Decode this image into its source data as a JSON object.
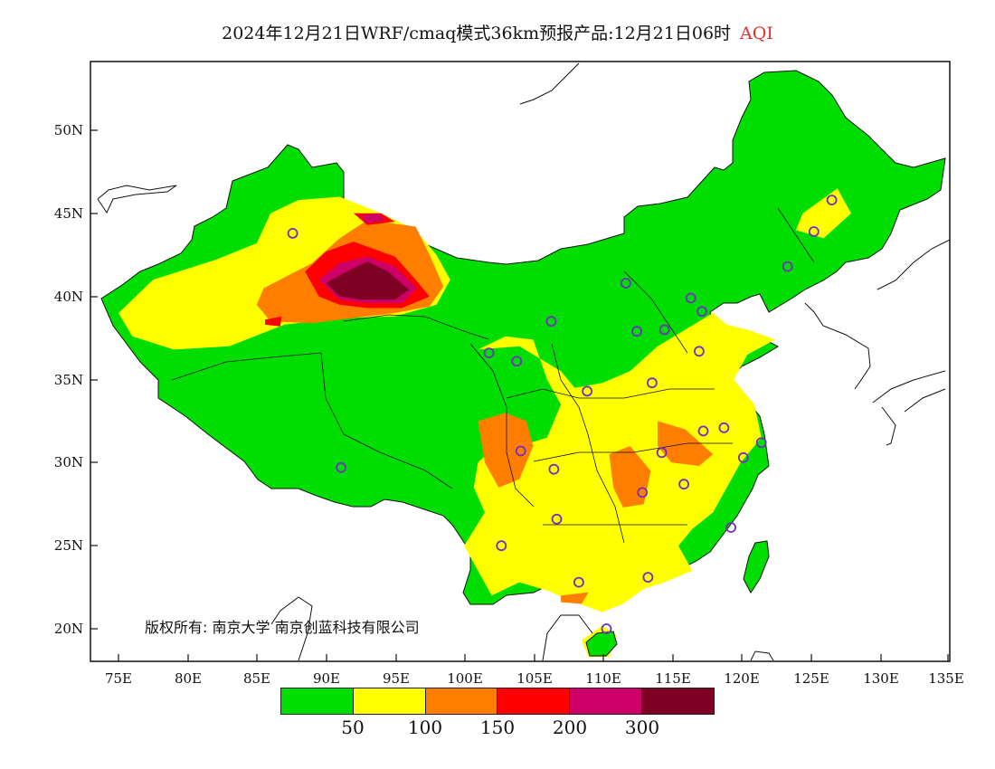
{
  "title": {
    "main": "2024年12月21日WRF/cmaq模式36km预报产品:12月21日06时",
    "variable": "AQI",
    "variable_color": "#e03030"
  },
  "axes": {
    "lat_labels": [
      "50N",
      "45N",
      "40N",
      "35N",
      "30N",
      "25N",
      "20N"
    ],
    "lon_labels": [
      "75E",
      "80E",
      "85E",
      "90E",
      "95E",
      "100E",
      "105E",
      "110E",
      "115E",
      "120E",
      "125E",
      "130E",
      "135E"
    ]
  },
  "legend": {
    "colors": [
      "#00dd00",
      "#ffff00",
      "#ff7e00",
      "#ff0000",
      "#cc0066",
      "#7e0023"
    ],
    "breaks": [
      "50",
      "100",
      "150",
      "200",
      "300"
    ]
  },
  "copyright": "版权所有: 南京大学 南京创蓝科技有限公司",
  "stations": {
    "marker_color": "#7030c0",
    "points": [
      [
        87.6,
        43.8
      ],
      [
        91.1,
        29.7
      ],
      [
        101.8,
        36.6
      ],
      [
        103.8,
        36.1
      ],
      [
        106.3,
        38.5
      ],
      [
        111.7,
        40.8
      ],
      [
        112.5,
        37.9
      ],
      [
        114.5,
        38.0
      ],
      [
        116.4,
        39.9
      ],
      [
        117.2,
        39.1
      ],
      [
        117.0,
        36.7
      ],
      [
        113.6,
        34.8
      ],
      [
        108.9,
        34.3
      ],
      [
        104.1,
        30.7
      ],
      [
        106.5,
        29.6
      ],
      [
        114.3,
        30.6
      ],
      [
        117.3,
        31.9
      ],
      [
        118.8,
        32.1
      ],
      [
        120.2,
        30.3
      ],
      [
        121.5,
        31.2
      ],
      [
        115.9,
        28.7
      ],
      [
        112.9,
        28.2
      ],
      [
        106.7,
        26.6
      ],
      [
        102.7,
        25.0
      ],
      [
        108.3,
        22.8
      ],
      [
        113.3,
        23.1
      ],
      [
        119.3,
        26.1
      ],
      [
        110.3,
        20.0
      ],
      [
        123.4,
        41.8
      ],
      [
        125.3,
        43.9
      ],
      [
        126.6,
        45.8
      ]
    ]
  },
  "aqi_patches": [
    {
      "level": 1,
      "points": [
        [
          88,
          45.8
        ],
        [
          91,
          46
        ],
        [
          94,
          45
        ],
        [
          96.5,
          44
        ],
        [
          98,
          42.5
        ],
        [
          99,
          41
        ],
        [
          98,
          39.5
        ],
        [
          95,
          38.8
        ],
        [
          91,
          38.7
        ],
        [
          87,
          38.3
        ],
        [
          83,
          37
        ],
        [
          79,
          36.8
        ],
        [
          76,
          37.6
        ],
        [
          75,
          39
        ],
        [
          77.5,
          41
        ],
        [
          82,
          42.2
        ],
        [
          85,
          43.2
        ],
        [
          86,
          45
        ],
        [
          88,
          45.8
        ]
      ]
    },
    {
      "level": 1,
      "points": [
        [
          101,
          36.8
        ],
        [
          103,
          37.6
        ],
        [
          105,
          37.4
        ],
        [
          106,
          35
        ],
        [
          107,
          33.5
        ],
        [
          106,
          31.5
        ],
        [
          104,
          31
        ],
        [
          102,
          30.8
        ],
        [
          101,
          30
        ],
        [
          100.7,
          28.5
        ],
        [
          101.5,
          27
        ],
        [
          100,
          25
        ],
        [
          101,
          23.5
        ],
        [
          102,
          22
        ],
        [
          104,
          22.8
        ],
        [
          106,
          22.3
        ],
        [
          108,
          21.6
        ],
        [
          110,
          21
        ],
        [
          111.5,
          21.5
        ],
        [
          113,
          22.4
        ],
        [
          114.5,
          22.8
        ],
        [
          116.5,
          23.5
        ],
        [
          115.5,
          25
        ],
        [
          116.5,
          26
        ],
        [
          118,
          27
        ],
        [
          119,
          28.5
        ],
        [
          120,
          30
        ],
        [
          121.5,
          31.5
        ],
        [
          121,
          33.5
        ],
        [
          119.5,
          35
        ],
        [
          120.5,
          36.5
        ],
        [
          122.5,
          37.4
        ],
        [
          120.5,
          38
        ],
        [
          119,
          38.3
        ],
        [
          118,
          39
        ],
        [
          116,
          38
        ],
        [
          114,
          37
        ],
        [
          112,
          35.5
        ],
        [
          110,
          34.8
        ],
        [
          108,
          34.5
        ],
        [
          107,
          35.5
        ],
        [
          104,
          37
        ],
        [
          101,
          36.8
        ]
      ]
    },
    {
      "level": 1,
      "points": [
        [
          124.5,
          45
        ],
        [
          127,
          46.5
        ],
        [
          128,
          45
        ],
        [
          126,
          43.5
        ],
        [
          124,
          44
        ],
        [
          124.5,
          45
        ]
      ]
    },
    {
      "level": 1,
      "points": [
        [
          108.5,
          19.3
        ],
        [
          110,
          20.2
        ],
        [
          111,
          19.6
        ],
        [
          110.5,
          18.3
        ],
        [
          109,
          18.3
        ],
        [
          108.5,
          19.3
        ]
      ]
    },
    {
      "level": 2,
      "points": [
        [
          101,
          32.5
        ],
        [
          103,
          33
        ],
        [
          104.5,
          32.5
        ],
        [
          105,
          31
        ],
        [
          104,
          29
        ],
        [
          102.5,
          28.5
        ],
        [
          101.5,
          30
        ],
        [
          101,
          32.5
        ]
      ]
    },
    {
      "level": 2,
      "points": [
        [
          110.5,
          30.5
        ],
        [
          112,
          31
        ],
        [
          113.5,
          29.5
        ],
        [
          113,
          27.5
        ],
        [
          111.5,
          27.3
        ],
        [
          110.8,
          28.5
        ],
        [
          110.5,
          30.5
        ]
      ]
    },
    {
      "level": 2,
      "points": [
        [
          114,
          32.5
        ],
        [
          116,
          32
        ],
        [
          118,
          30.5
        ],
        [
          117,
          29.8
        ],
        [
          115,
          30
        ],
        [
          114,
          31
        ],
        [
          114,
          32.5
        ]
      ]
    },
    {
      "level": 2,
      "points": [
        [
          85.5,
          40.5
        ],
        [
          89,
          42
        ],
        [
          91,
          43.5
        ],
        [
          93,
          44.6
        ],
        [
          96.5,
          44.2
        ],
        [
          97.5,
          42.5
        ],
        [
          98.5,
          40.6
        ],
        [
          97.5,
          39.4
        ],
        [
          95,
          39
        ],
        [
          92,
          38.7
        ],
        [
          89,
          38.4
        ],
        [
          86,
          38.5
        ],
        [
          85,
          39.5
        ],
        [
          85.5,
          40.5
        ]
      ]
    },
    {
      "level": 2,
      "points": [
        [
          107,
          22
        ],
        [
          109,
          22.2
        ],
        [
          108.5,
          21.5
        ],
        [
          107,
          21.6
        ],
        [
          107,
          22
        ]
      ]
    },
    {
      "level": 3,
      "points": [
        [
          88.5,
          41.5
        ],
        [
          90,
          42.7
        ],
        [
          92,
          43.3
        ],
        [
          95,
          42.4
        ],
        [
          96.5,
          41
        ],
        [
          97.5,
          40
        ],
        [
          95.5,
          39.3
        ],
        [
          93,
          39.3
        ],
        [
          91,
          39.5
        ],
        [
          89.5,
          40
        ],
        [
          88.5,
          41.5
        ]
      ]
    },
    {
      "level": 3,
      "points": [
        [
          92,
          45
        ],
        [
          94,
          45
        ],
        [
          95,
          44.5
        ],
        [
          93,
          44.3
        ],
        [
          92,
          45
        ]
      ]
    },
    {
      "level": 3,
      "points": [
        [
          85.6,
          38.6
        ],
        [
          86.8,
          38.8
        ],
        [
          86.7,
          38.2
        ],
        [
          85.6,
          38.3
        ],
        [
          85.6,
          38.6
        ]
      ]
    },
    {
      "level": 4,
      "points": [
        [
          89.5,
          41
        ],
        [
          91,
          42
        ],
        [
          93,
          42.4
        ],
        [
          95,
          41.8
        ],
        [
          96.6,
          40.5
        ],
        [
          95.5,
          39.6
        ],
        [
          93,
          39.6
        ],
        [
          91,
          39.8
        ],
        [
          89.5,
          41
        ]
      ]
    },
    {
      "level": 4,
      "points": [
        [
          92.6,
          44.9
        ],
        [
          93.8,
          45
        ],
        [
          94.3,
          44.6
        ],
        [
          92.9,
          44.4
        ],
        [
          92.6,
          44.9
        ]
      ]
    },
    {
      "level": 5,
      "points": [
        [
          90,
          40.8
        ],
        [
          91.5,
          41.5
        ],
        [
          93,
          42.1
        ],
        [
          94.5,
          41.5
        ],
        [
          96,
          40.4
        ],
        [
          95,
          39.8
        ],
        [
          92.5,
          39.8
        ],
        [
          91,
          40
        ],
        [
          90,
          40.8
        ]
      ]
    }
  ]
}
